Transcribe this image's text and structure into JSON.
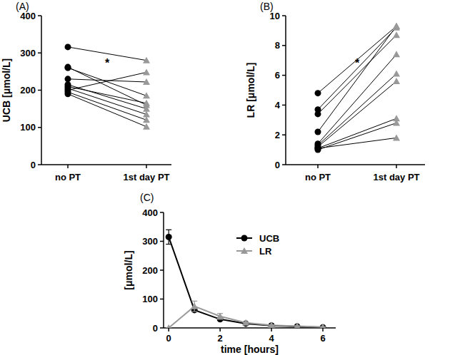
{
  "chart_data": [
    {
      "type": "paired",
      "panel_label": "(A)",
      "y_label": "UCB [μmol/L]",
      "categories": [
        "no PT",
        "1st day PT"
      ],
      "colors": [
        "#000000",
        "#999999"
      ],
      "ylim": [
        0,
        400
      ],
      "yticks": [
        0,
        100,
        200,
        300,
        400
      ],
      "annotation": "*",
      "series": [
        {
          "values": [
            316,
            280
          ]
        },
        {
          "values": [
            262,
            160
          ]
        },
        {
          "values": [
            260,
            185
          ]
        },
        {
          "values": [
            230,
            222
          ]
        },
        {
          "values": [
            215,
            150
          ]
        },
        {
          "values": [
            205,
            135
          ]
        },
        {
          "values": [
            200,
            248
          ]
        },
        {
          "values": [
            195,
            120
          ]
        },
        {
          "values": [
            190,
            102
          ]
        },
        {
          "values": [
            210,
            165
          ]
        }
      ]
    },
    {
      "type": "paired",
      "panel_label": "(B)",
      "y_label": "LR [μmol/L]",
      "categories": [
        "no PT",
        "1st day PT"
      ],
      "colors": [
        "#000000",
        "#999999"
      ],
      "ylim": [
        0,
        10
      ],
      "yticks": [
        0,
        2,
        4,
        6,
        8,
        10
      ],
      "annotation": "*",
      "series": [
        {
          "values": [
            4.8,
            9.3
          ]
        },
        {
          "values": [
            3.7,
            9.2
          ]
        },
        {
          "values": [
            3.4,
            8.7
          ]
        },
        {
          "values": [
            2.2,
            9.3
          ]
        },
        {
          "values": [
            1.4,
            7.4
          ]
        },
        {
          "values": [
            1.3,
            6.1
          ]
        },
        {
          "values": [
            1.2,
            5.6
          ]
        },
        {
          "values": [
            1.1,
            3.1
          ]
        },
        {
          "values": [
            1.0,
            2.8
          ]
        },
        {
          "values": [
            1.1,
            1.8
          ]
        }
      ]
    },
    {
      "type": "line",
      "panel_label": "(C)",
      "y_label": "[μmol/L]",
      "x_label": "time [hours]",
      "x": [
        0,
        1,
        2,
        3,
        4,
        5,
        6
      ],
      "xlim": [
        -0.2,
        6.5
      ],
      "xticks": [
        0,
        2,
        4,
        6
      ],
      "ylim": [
        0,
        400
      ],
      "yticks": [
        0,
        100,
        200,
        300,
        400
      ],
      "legend": "right",
      "series": [
        {
          "name": "UCB",
          "color": "#000000",
          "marker": "circle",
          "values": [
            315,
            62,
            30,
            15,
            8,
            5,
            2
          ],
          "errors": [
            25,
            5,
            3,
            2,
            1,
            1,
            1
          ]
        },
        {
          "name": "LR",
          "color": "#999999",
          "marker": "triangle",
          "values": [
            0,
            75,
            40,
            18,
            9,
            6,
            3
          ],
          "errors": [
            0,
            18,
            10,
            3,
            2,
            1,
            1
          ]
        }
      ]
    }
  ]
}
